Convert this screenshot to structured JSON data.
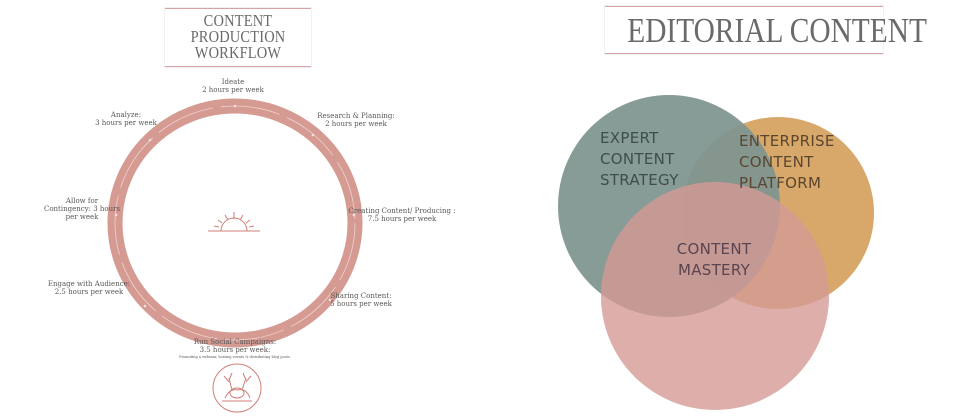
{
  "workflow": {
    "title_lines": [
      "CONTENT",
      "PRODUCTION",
      "WORKFLOW"
    ],
    "steps": {
      "ideate": {
        "name": "Ideate",
        "time": "2 hours per week"
      },
      "research": {
        "name": "Research & Planning:",
        "time": "2 hours per week"
      },
      "creating": {
        "name": "Creating Content/ Producing :",
        "time": "7.5 hours per week"
      },
      "sharing": {
        "name": "Sharing Content:",
        "time": "5 hours per week"
      },
      "campaigns": {
        "name": "Run Social Campaigns:",
        "time": "3.5 hours per week:",
        "note": "Promoting a webinar, hosting events & distributing blog posts."
      },
      "engage": {
        "name": "Engage with Audience:",
        "time": "2.5 hours per week"
      },
      "contingency": {
        "line1": "Allow for",
        "line2": "Contingency: 3 hours",
        "line3": "per week"
      },
      "analyze": {
        "name": "Analyze:",
        "time": "3  hours per week"
      }
    },
    "colors": {
      "ring": "#d59a92",
      "ring_edge": "#c98880",
      "inner_line": "#f2d6d2",
      "sun": "#d07f78"
    },
    "icons": [
      "sunrise-icon",
      "reindeer-logo-icon"
    ]
  },
  "editorial": {
    "title": "EDITORIAL CONTENT",
    "circles": {
      "expert": {
        "lines": [
          "EXPERT",
          "CONTENT",
          "STRATEGY"
        ],
        "color": "#7f9590"
      },
      "enterprise": {
        "lines": [
          "ENTERPRISE",
          "CONTENT",
          "PLATFORM"
        ],
        "color": "#d7a86a"
      },
      "mastery": {
        "lines": [
          "CONTENT",
          "MASTERY"
        ],
        "color": "#d49a95"
      }
    },
    "text_colors": {
      "expert": "#3f4e4b",
      "enterprise": "#5b4630",
      "mastery": "#5a4450"
    }
  }
}
